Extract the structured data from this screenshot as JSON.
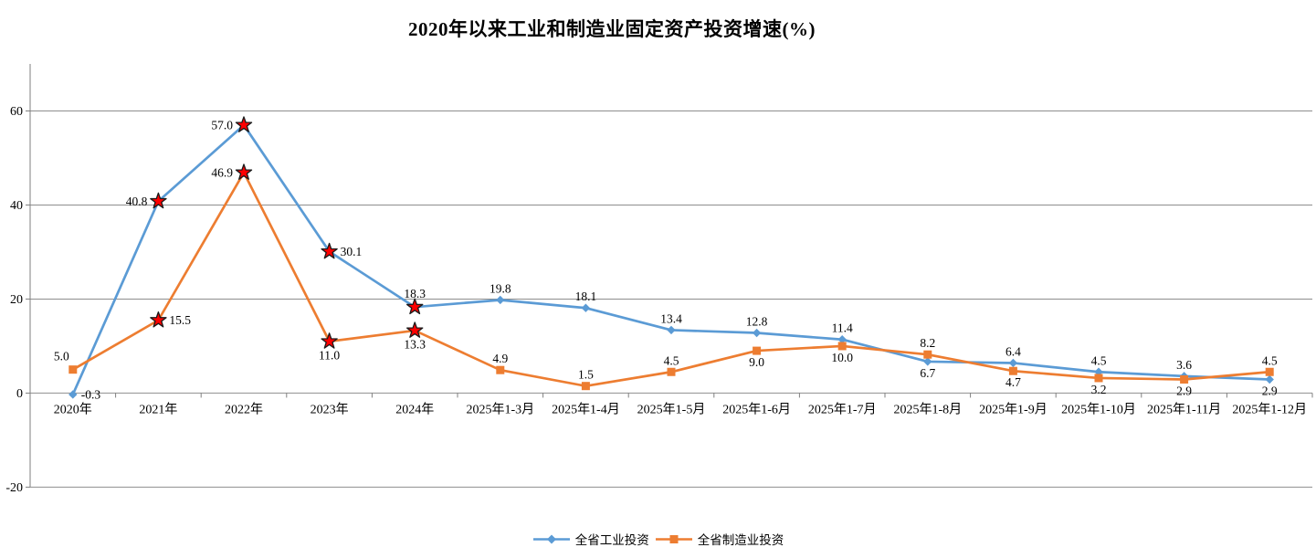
{
  "chart_data": {
    "type": "line",
    "title": "2020年以来工业和制造业固定资产投资增速(%)",
    "categories": [
      "2020年",
      "2021年",
      "2022年",
      "2023年",
      "2024年",
      "2025年1-3月",
      "2025年1-4月",
      "2025年1-5月",
      "2025年1-6月",
      "2025年1-7月",
      "2025年1-8月",
      "2025年1-9月",
      "2025年1-10月",
      "2025年1-11月",
      "2025年1-12月"
    ],
    "y_axis": {
      "min": -20,
      "max": 70,
      "ticks": [
        60,
        40,
        20,
        0,
        -20
      ],
      "tick_labels": [
        "60",
        "40",
        "20",
        "0",
        "-20"
      ]
    },
    "grid": "horizontal",
    "legend_position": "bottom",
    "series": [
      {
        "name": "全省工业投资",
        "color": "#5B9BD5",
        "marker": "diamond",
        "values": [
          -0.3,
          40.8,
          57.0,
          30.1,
          18.3,
          19.8,
          18.1,
          13.4,
          12.8,
          11.4,
          6.7,
          6.4,
          4.5,
          3.6,
          2.9
        ],
        "labels": [
          "-0.3",
          "40.8",
          "57.0",
          "30.1",
          "18.3",
          "19.8",
          "18.1",
          "13.4",
          "12.8",
          "11.4",
          "6.7",
          "6.4",
          "4.5",
          "3.6",
          "2.9"
        ],
        "label_positions": [
          "right",
          "left",
          "left",
          "right",
          "above",
          "above",
          "above",
          "above",
          "above",
          "above",
          "below",
          "above",
          "above",
          "above",
          "below"
        ],
        "star_marker_indices": [
          1,
          2,
          3,
          4
        ]
      },
      {
        "name": "全省制造业投资",
        "color": "#ED7D31",
        "marker": "square",
        "values": [
          5.0,
          15.5,
          46.9,
          11.0,
          13.3,
          4.9,
          1.5,
          4.5,
          9.0,
          10.0,
          8.2,
          4.7,
          3.2,
          2.9,
          4.5
        ],
        "labels": [
          "5.0",
          "15.5",
          "46.9",
          "11.0",
          "13.3",
          "4.9",
          "1.5",
          "4.5",
          "9.0",
          "10.0",
          "8.2",
          "4.7",
          "3.2",
          "2.9",
          "4.5"
        ],
        "label_positions": [
          "upleft",
          "right",
          "left",
          "below",
          "below",
          "above",
          "above",
          "above",
          "below",
          "below",
          "above",
          "below",
          "below",
          "below",
          "above"
        ],
        "star_marker_indices": [
          1,
          2,
          3,
          4
        ]
      }
    ],
    "highlight_marker": {
      "shape": "star",
      "fill": "#FF0000",
      "stroke": "#1A1A1A"
    }
  },
  "colors": {
    "background": "#FFFFFF",
    "gridline": "#8E8E8E",
    "axis": "#7F7F7F",
    "text": "#000000"
  }
}
